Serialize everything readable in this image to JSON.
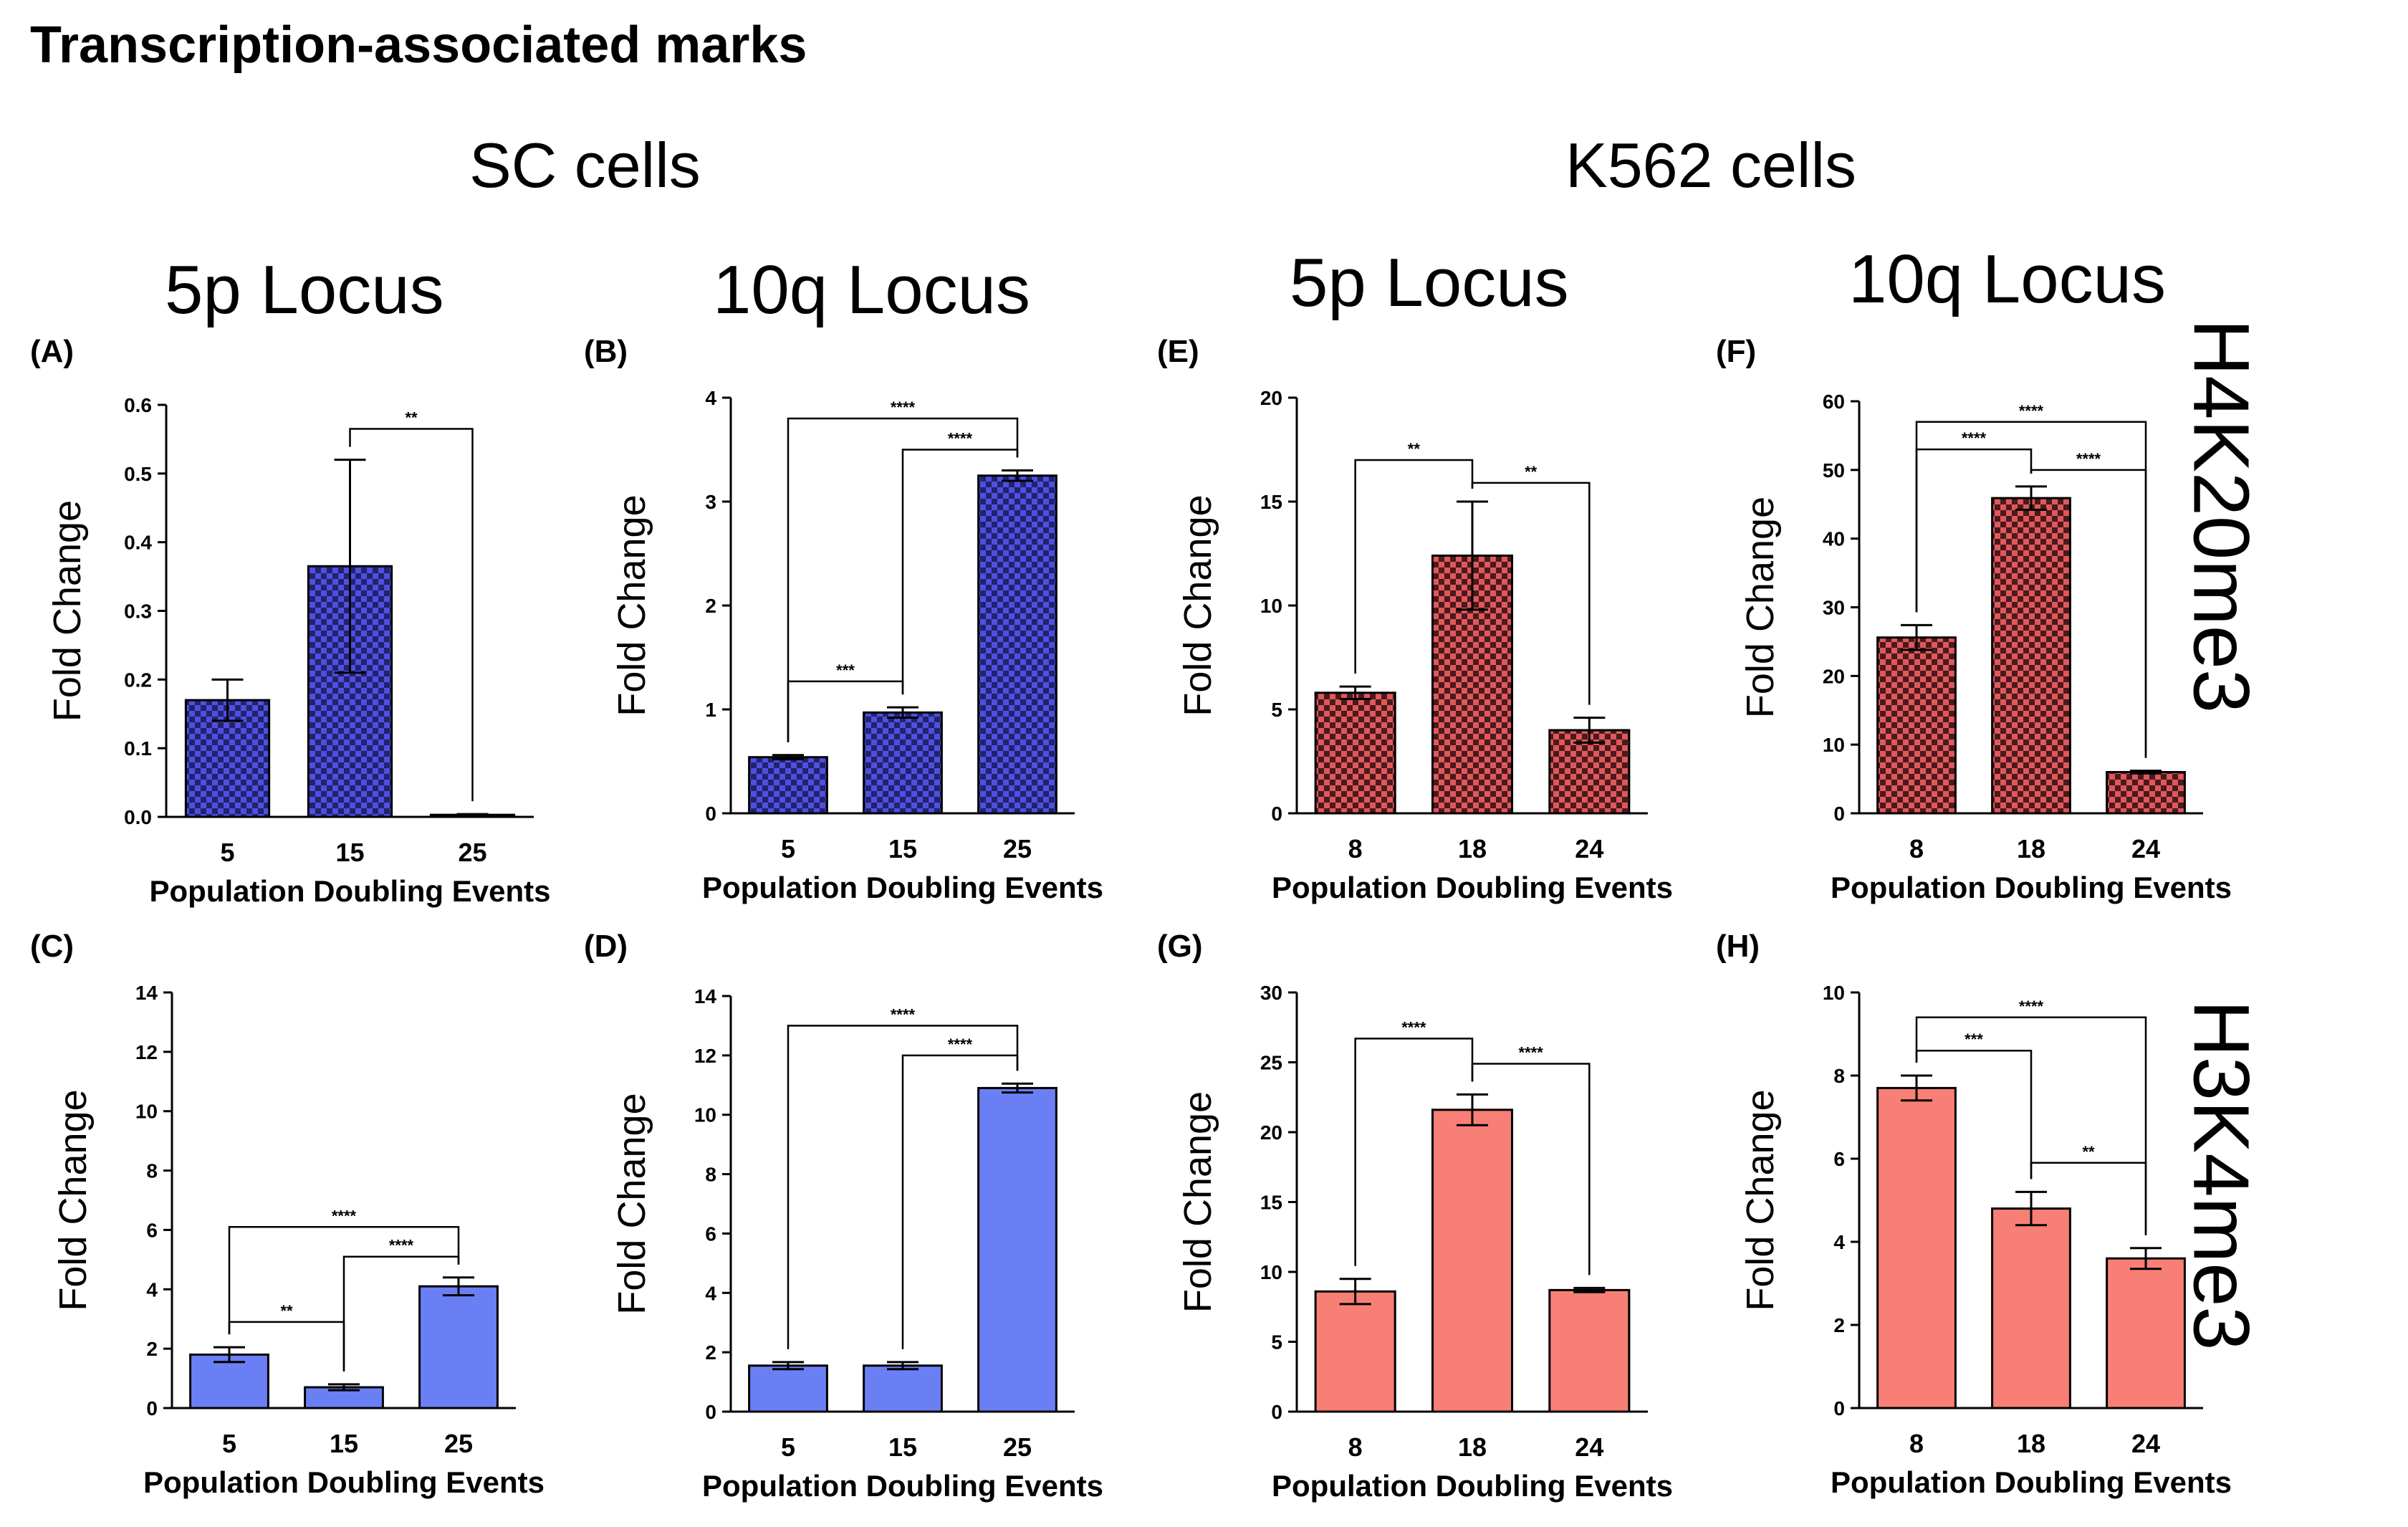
{
  "figure": {
    "title": "Transcription-associated marks",
    "groups": [
      "SC cells",
      "K562 cells"
    ],
    "loci": [
      "5p Locus",
      "10q Locus",
      "5p Locus",
      "10q Locus"
    ],
    "row_labels": [
      "H4K20me3",
      "H3K4me3"
    ],
    "colors": {
      "blue_dark": "#4f4fe0",
      "blue_check": "#22226e",
      "blue_solid": "#6b7ff5",
      "red_dark": "#e0585c",
      "red_check": "#4a1a1c",
      "red_solid": "#f77f75"
    }
  },
  "chart_data": [
    {
      "panel": "(A)",
      "type": "bar",
      "pattern": "checker",
      "color": "blue",
      "categories": [
        "5",
        "15",
        "25"
      ],
      "values": [
        0.17,
        0.365,
        0.003
      ],
      "errors": [
        0.03,
        0.155,
        0.001
      ],
      "xlabel": "Population Doubling Events",
      "ylabel": "Fold Change",
      "ylim": [
        0,
        0.6
      ],
      "yticks": [
        "0.0",
        "0.1",
        "0.2",
        "0.3",
        "0.4",
        "0.5",
        "0.6"
      ],
      "ytick_values": [
        0,
        0.1,
        0.2,
        0.3,
        0.4,
        0.5,
        0.6
      ],
      "significance": [
        {
          "from": 1,
          "to": 2,
          "label": "**",
          "y": 0.565
        }
      ]
    },
    {
      "panel": "(B)",
      "type": "bar",
      "pattern": "checker",
      "color": "blue",
      "categories": [
        "5",
        "15",
        "25"
      ],
      "values": [
        0.54,
        0.97,
        3.25
      ],
      "errors": [
        0.02,
        0.05,
        0.05
      ],
      "xlabel": "Population Doubling Events",
      "ylabel": "Fold Change",
      "ylim": [
        0,
        4
      ],
      "yticks": [
        "0",
        "1",
        "2",
        "3",
        "4"
      ],
      "ytick_values": [
        0,
        1,
        2,
        3,
        4
      ],
      "significance": [
        {
          "from": 0,
          "to": 1,
          "label": "***",
          "y": 1.27
        },
        {
          "from": 1,
          "to": 2,
          "label": "****",
          "y": 3.5
        },
        {
          "from": 0,
          "to": 2,
          "label": "****",
          "y": 3.8
        }
      ]
    },
    {
      "panel": "(E)",
      "type": "bar",
      "pattern": "checker",
      "color": "red",
      "categories": [
        "8",
        "18",
        "24"
      ],
      "values": [
        5.8,
        12.4,
        4.0
      ],
      "errors": [
        0.3,
        2.6,
        0.6
      ],
      "xlabel": "Population Doubling Events",
      "ylabel": "Fold Change",
      "ylim": [
        0,
        20
      ],
      "yticks": [
        "0",
        "5",
        "10",
        "15",
        "20"
      ],
      "ytick_values": [
        0,
        5,
        10,
        15,
        20
      ],
      "significance": [
        {
          "from": 0,
          "to": 1,
          "label": "**",
          "y": 17.0
        },
        {
          "from": 1,
          "to": 2,
          "label": "**",
          "y": 15.9
        }
      ]
    },
    {
      "panel": "(F)",
      "type": "bar",
      "pattern": "checker",
      "color": "red",
      "categories": [
        "8",
        "18",
        "24"
      ],
      "values": [
        25.6,
        45.9,
        6.0
      ],
      "errors": [
        1.8,
        1.7,
        0.2
      ],
      "xlabel": "Population Doubling Events",
      "ylabel": "Fold Change",
      "ylim": [
        0,
        60
      ],
      "yticks": [
        "0",
        "10",
        "20",
        "30",
        "40",
        "50",
        "60"
      ],
      "ytick_values": [
        0,
        10,
        20,
        30,
        40,
        50,
        60
      ],
      "significance": [
        {
          "from": 0,
          "to": 1,
          "label": "****",
          "y": 53.0
        },
        {
          "from": 1,
          "to": 2,
          "label": "****",
          "y": 50.0
        },
        {
          "from": 0,
          "to": 2,
          "label": "****",
          "y": 57.0
        }
      ]
    },
    {
      "panel": "(C)",
      "type": "bar",
      "pattern": "solid",
      "color": "blue",
      "categories": [
        "5",
        "15",
        "25"
      ],
      "values": [
        1.8,
        0.7,
        4.1
      ],
      "errors": [
        0.25,
        0.1,
        0.3
      ],
      "xlabel": "Population Doubling Events",
      "ylabel": "Fold Change",
      "ylim": [
        0,
        14
      ],
      "yticks": [
        "0",
        "2",
        "4",
        "6",
        "8",
        "10",
        "12",
        "14"
      ],
      "ytick_values": [
        0,
        2,
        4,
        6,
        8,
        10,
        12,
        14
      ],
      "significance": [
        {
          "from": 0,
          "to": 1,
          "label": "**",
          "y": 2.9
        },
        {
          "from": 1,
          "to": 2,
          "label": "****",
          "y": 5.1
        },
        {
          "from": 0,
          "to": 2,
          "label": "****",
          "y": 6.1
        }
      ]
    },
    {
      "panel": "(D)",
      "type": "bar",
      "pattern": "solid",
      "color": "blue",
      "categories": [
        "5",
        "15",
        "25"
      ],
      "values": [
        1.55,
        1.55,
        10.9
      ],
      "errors": [
        0.12,
        0.12,
        0.15
      ],
      "xlabel": "Population Doubling Events",
      "ylabel": "Fold Change",
      "ylim": [
        0,
        14
      ],
      "yticks": [
        "0",
        "2",
        "4",
        "6",
        "8",
        "10",
        "12",
        "14"
      ],
      "ytick_values": [
        0,
        2,
        4,
        6,
        8,
        10,
        12,
        14
      ],
      "significance": [
        {
          "from": 1,
          "to": 2,
          "label": "****",
          "y": 12.0
        },
        {
          "from": 0,
          "to": 2,
          "label": "****",
          "y": 13.0
        }
      ]
    },
    {
      "panel": "(G)",
      "type": "bar",
      "pattern": "solid",
      "color": "red",
      "categories": [
        "8",
        "18",
        "24"
      ],
      "values": [
        8.6,
        21.6,
        8.7
      ],
      "errors": [
        0.9,
        1.1,
        0.15
      ],
      "xlabel": "Population Doubling Events",
      "ylabel": "Fold Change",
      "ylim": [
        0,
        30
      ],
      "yticks": [
        "0",
        "5",
        "10",
        "15",
        "20",
        "25",
        "30"
      ],
      "ytick_values": [
        0,
        5,
        10,
        15,
        20,
        25,
        30
      ],
      "significance": [
        {
          "from": 0,
          "to": 1,
          "label": "****",
          "y": 26.7
        },
        {
          "from": 1,
          "to": 2,
          "label": "****",
          "y": 24.9
        }
      ]
    },
    {
      "panel": "(H)",
      "type": "bar",
      "pattern": "solid",
      "color": "red",
      "categories": [
        "8",
        "18",
        "24"
      ],
      "values": [
        7.7,
        4.8,
        3.6
      ],
      "errors": [
        0.3,
        0.4,
        0.25
      ],
      "xlabel": "Population Doubling Events",
      "ylabel": "Fold Change",
      "ylim": [
        0,
        10
      ],
      "yticks": [
        "0",
        "2",
        "4",
        "6",
        "8",
        "10"
      ],
      "ytick_values": [
        0,
        2,
        4,
        6,
        8,
        10
      ],
      "significance": [
        {
          "from": 0,
          "to": 1,
          "label": "***",
          "y": 8.6
        },
        {
          "from": 1,
          "to": 2,
          "label": "**",
          "y": 5.9
        },
        {
          "from": 0,
          "to": 2,
          "label": "****",
          "y": 9.4
        }
      ]
    }
  ]
}
